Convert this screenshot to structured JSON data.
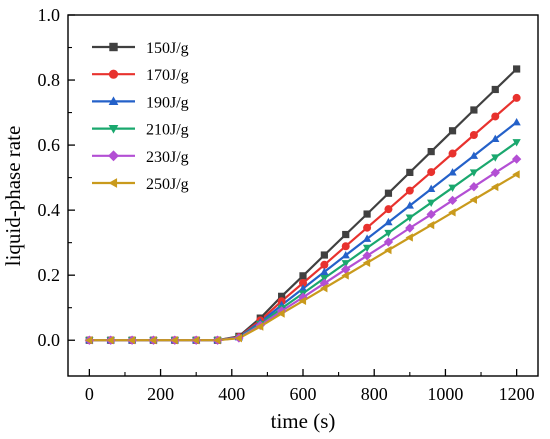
{
  "chart_data": {
    "type": "line",
    "title": "",
    "xlabel": "time (s)",
    "ylabel": "liquid-phase rate",
    "xlim": [
      -60,
      1260
    ],
    "ylim": [
      -0.11,
      1.0
    ],
    "xticks": [
      0,
      200,
      400,
      600,
      800,
      1000,
      1200
    ],
    "yticks": [
      0.0,
      0.2,
      0.4,
      0.6,
      0.8,
      1.0
    ],
    "xtick_labels": [
      "0",
      "200",
      "400",
      "600",
      "800",
      "1000",
      "1200"
    ],
    "ytick_labels": [
      "0.0",
      "0.2",
      "0.4",
      "0.6",
      "0.8",
      "1.0"
    ],
    "grid": false,
    "legend_position": "top-left",
    "x": [
      0,
      60,
      120,
      180,
      240,
      300,
      360,
      420,
      480,
      540,
      600,
      660,
      720,
      780,
      840,
      900,
      960,
      1020,
      1080,
      1140,
      1200
    ],
    "series": [
      {
        "name": "150J/g",
        "color": "#404040",
        "marker": "square",
        "values": [
          0,
          0,
          0,
          0,
          0,
          0,
          0,
          0.012,
          0.068,
          0.135,
          0.198,
          0.262,
          0.325,
          0.388,
          0.452,
          0.516,
          0.58,
          0.644,
          0.708,
          0.771,
          0.834
        ]
      },
      {
        "name": "170J/g",
        "color": "#e8322e",
        "marker": "circle",
        "values": [
          0,
          0,
          0,
          0,
          0,
          0,
          0,
          0.01,
          0.061,
          0.12,
          0.176,
          0.232,
          0.289,
          0.346,
          0.403,
          0.46,
          0.517,
          0.574,
          0.631,
          0.688,
          0.745
        ]
      },
      {
        "name": "190J/g",
        "color": "#2461c9",
        "marker": "triangle-up",
        "values": [
          0,
          0,
          0,
          0,
          0,
          0,
          0,
          0.009,
          0.055,
          0.108,
          0.159,
          0.21,
          0.261,
          0.312,
          0.363,
          0.414,
          0.465,
          0.516,
          0.567,
          0.619,
          0.67
        ]
      },
      {
        "name": "210J/g",
        "color": "#1aa86e",
        "marker": "triangle-down",
        "values": [
          0,
          0,
          0,
          0,
          0,
          0,
          0,
          0.008,
          0.05,
          0.098,
          0.144,
          0.191,
          0.237,
          0.284,
          0.33,
          0.377,
          0.423,
          0.469,
          0.516,
          0.562,
          0.609
        ]
      },
      {
        "name": "230J/g",
        "color": "#b34fd4",
        "marker": "diamond",
        "values": [
          0,
          0,
          0,
          0,
          0,
          0,
          0,
          0.007,
          0.046,
          0.09,
          0.132,
          0.175,
          0.218,
          0.26,
          0.302,
          0.345,
          0.387,
          0.43,
          0.472,
          0.515,
          0.557
        ]
      },
      {
        "name": "250J/g",
        "color": "#c99a1c",
        "marker": "triangle-left",
        "values": [
          0,
          0,
          0,
          0,
          0,
          0,
          0,
          0.006,
          0.042,
          0.082,
          0.121,
          0.16,
          0.199,
          0.238,
          0.277,
          0.316,
          0.354,
          0.393,
          0.432,
          0.471,
          0.51
        ]
      }
    ]
  }
}
